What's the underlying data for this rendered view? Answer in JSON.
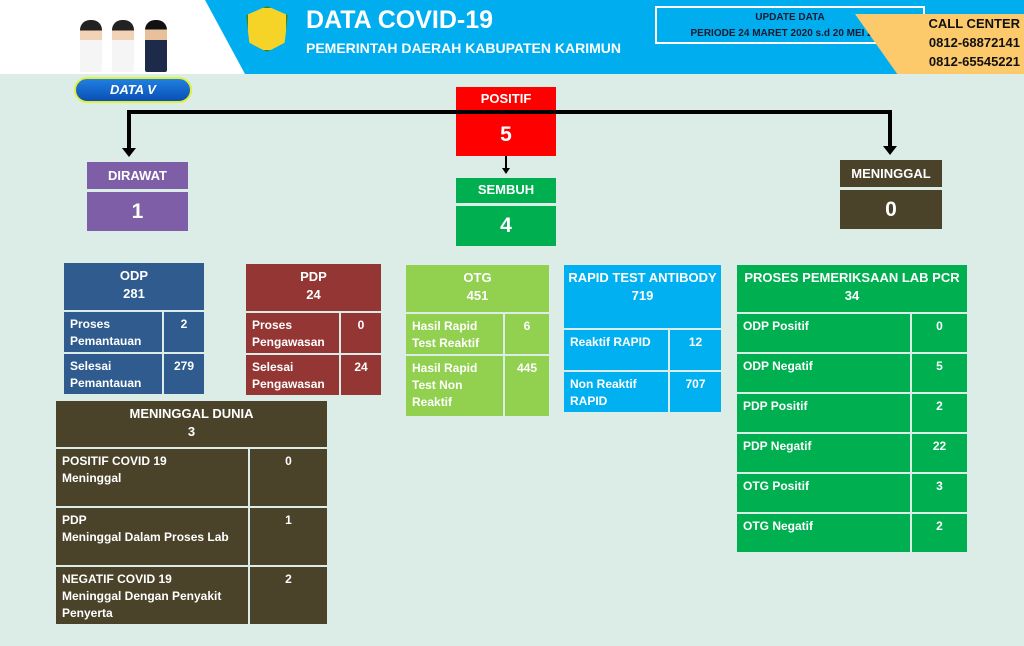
{
  "header": {
    "title": "DATA COVID-19",
    "subtitle": "PEMERINTAH DAERAH KABUPATEN KARIMUN",
    "update_label": "UPDATE DATA",
    "period": "PERIODE  24  MARET 2020 s.d 20  MEI 2020",
    "call_center": "CALL CENTER",
    "phone1": "0812-68872141",
    "phone2": "0812-65545221",
    "badge": "DATA V"
  },
  "colors": {
    "positif": "#ff0000",
    "sembuh": "#00b050",
    "dirawat": "#7f5ea8",
    "meninggal": "#4a4229",
    "odp": "#2f5b8f",
    "pdp": "#943634",
    "otg": "#92d050",
    "rapid": "#00b0f0",
    "lab": "#00b050"
  },
  "summary": {
    "positif": {
      "label": "POSITIF",
      "value": "5"
    },
    "sembuh": {
      "label": "SEMBUH",
      "value": "4"
    },
    "dirawat": {
      "label": "DIRAWAT",
      "value": "1"
    },
    "meninggal": {
      "label": "MENINGGAL",
      "value": "0"
    }
  },
  "odp": {
    "title": "ODP",
    "total": "281",
    "rows": [
      {
        "k": "Proses Pemantauan",
        "v": "2"
      },
      {
        "k": "Selesai Pemantauan",
        "v": "279"
      }
    ]
  },
  "pdp": {
    "title": "PDP",
    "total": "24",
    "rows": [
      {
        "k": "Proses Pengawasan",
        "v": "0"
      },
      {
        "k": "Selesai Pengawasan",
        "v": "24"
      }
    ]
  },
  "otg": {
    "title": "OTG",
    "total": "451",
    "rows": [
      {
        "k": "Hasil Rapid Test Reaktif",
        "v": "6"
      },
      {
        "k": "Hasil Rapid Test Non Reaktif",
        "v": "445"
      }
    ]
  },
  "rapid": {
    "title": "RAPID TEST ANTIBODY",
    "total": "719",
    "rows": [
      {
        "k": "Reaktif RAPID",
        "v": "12"
      },
      {
        "k": "Non Reaktif RAPID",
        "v": "707"
      }
    ]
  },
  "lab": {
    "title": "PROSES PEMERIKSAAN LAB PCR",
    "total": "34",
    "rows": [
      {
        "k": "ODP Positif",
        "v": "0"
      },
      {
        "k": "ODP Negatif",
        "v": "5"
      },
      {
        "k": "PDP Positif",
        "v": "2"
      },
      {
        "k": "PDP Negatif",
        "v": "22"
      },
      {
        "k": "OTG Positif",
        "v": "3"
      },
      {
        "k": "OTG Negatif",
        "v": "2"
      }
    ]
  },
  "meninggal_dunia": {
    "title": "MENINGGAL DUNIA",
    "total": "3",
    "rows": [
      {
        "k": "POSITIF COVID 19\nMeninggal",
        "v": "0"
      },
      {
        "k": "PDP\nMeninggal Dalam Proses Lab",
        "v": "1"
      },
      {
        "k": "NEGATIF COVID 19\nMeninggal Dengan Penyakit Penyerta",
        "v": "2"
      }
    ]
  }
}
